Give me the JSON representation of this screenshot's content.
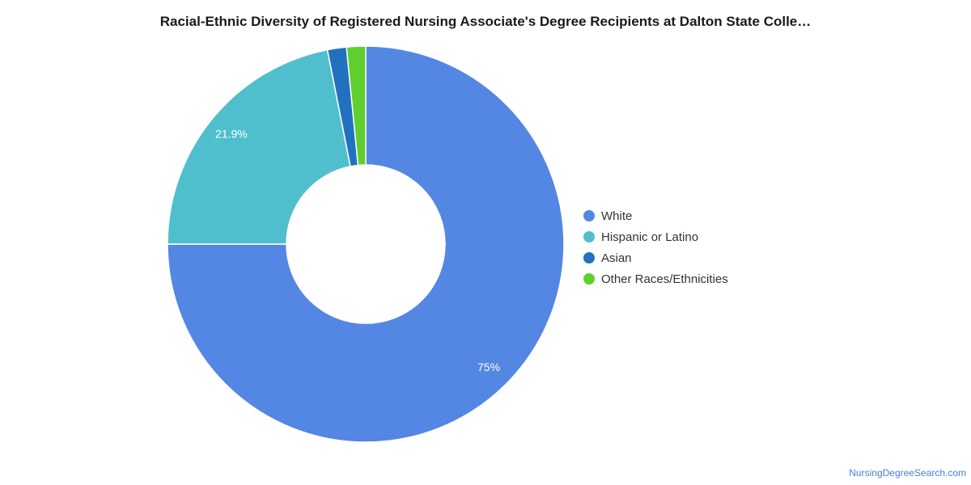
{
  "chart_data": {
    "type": "pie",
    "title": "Racial-Ethnic Diversity of Registered Nursing Associate's Degree Recipients at Dalton State Colle…",
    "donut": true,
    "legend_position": "right",
    "slices": [
      {
        "label": "White",
        "value": 75,
        "color": "#5486e3",
        "data_label": "75%"
      },
      {
        "label": "Hispanic or Latino",
        "value": 21.9,
        "color": "#50bfcd",
        "data_label": "21.9%"
      },
      {
        "label": "Asian",
        "value": 1.55,
        "color": "#2271bf",
        "data_label": ""
      },
      {
        "label": "Other Races/Ethnicities",
        "value": 1.55,
        "color": "#5fcf2f",
        "data_label": ""
      }
    ]
  },
  "footer": {
    "source": "NursingDegreeSearch.com"
  }
}
